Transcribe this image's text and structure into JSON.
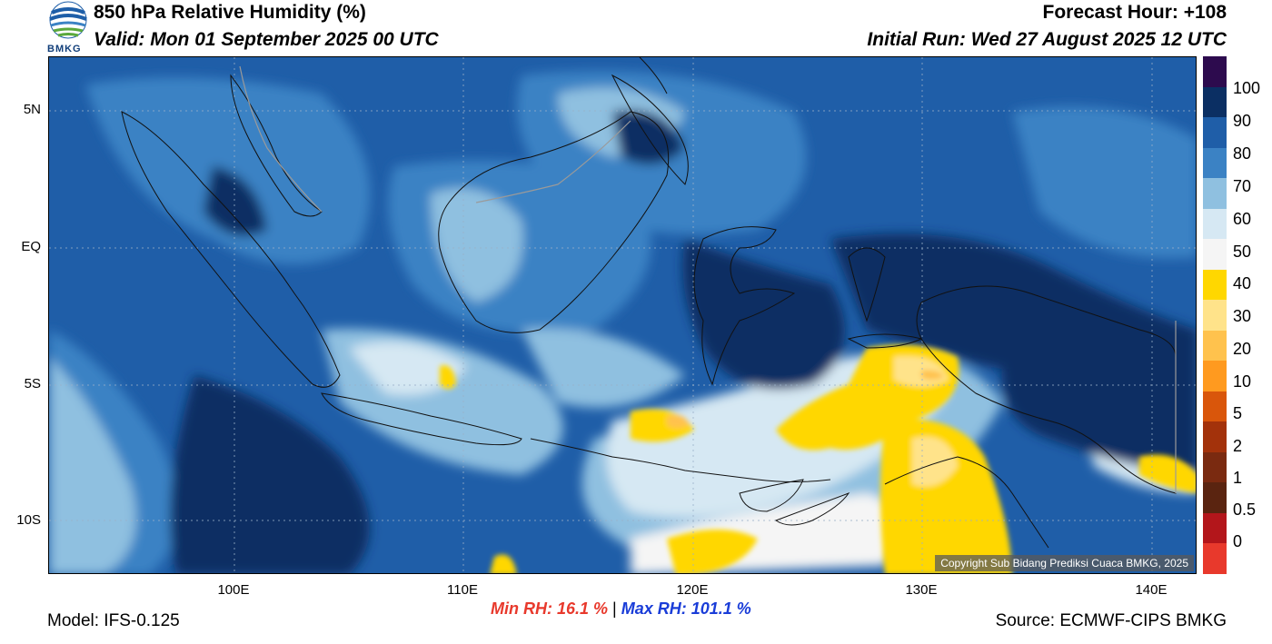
{
  "header": {
    "title": "850 hPa Relative Humidity (%)",
    "valid": "Valid: Mon 01 September 2025 00 UTC",
    "forecast_hour": "Forecast Hour: +108",
    "initial_run": "Initial Run: Wed 27 August 2025 12 UTC",
    "logo_text": "BMKG"
  },
  "map": {
    "lat_labels": [
      "5N",
      "EQ",
      "5S",
      "10S"
    ],
    "lon_labels": [
      "100E",
      "110E",
      "120E",
      "130E",
      "140E"
    ],
    "copyright": "Copyright Sub Bidang Prediksi Cuaca BMKG, 2025"
  },
  "colorbar": {
    "labels": [
      "100",
      "90",
      "80",
      "70",
      "60",
      "50",
      "40",
      "30",
      "20",
      "10",
      "5",
      "2",
      "1",
      "0.5",
      "0"
    ],
    "colors": [
      "#2d0b4e",
      "#0b2f63",
      "#1f5ea8",
      "#3b82c4",
      "#8fc0e0",
      "#d6e8f3",
      "#f5f5f5",
      "#ffd700",
      "#ffe38a",
      "#ffc24d",
      "#ff9a1f",
      "#d9560b",
      "#a3320b",
      "#7a2a10",
      "#5a2410",
      "#b3161b",
      "#e8392c"
    ]
  },
  "footer": {
    "model": "Model: IFS-0.125",
    "min_rh": "Min RH:  16.1 %",
    "separator": "|",
    "max_rh": "Max RH: 101.1 %",
    "source": "Source: ECMWF-CIPS BMKG"
  }
}
